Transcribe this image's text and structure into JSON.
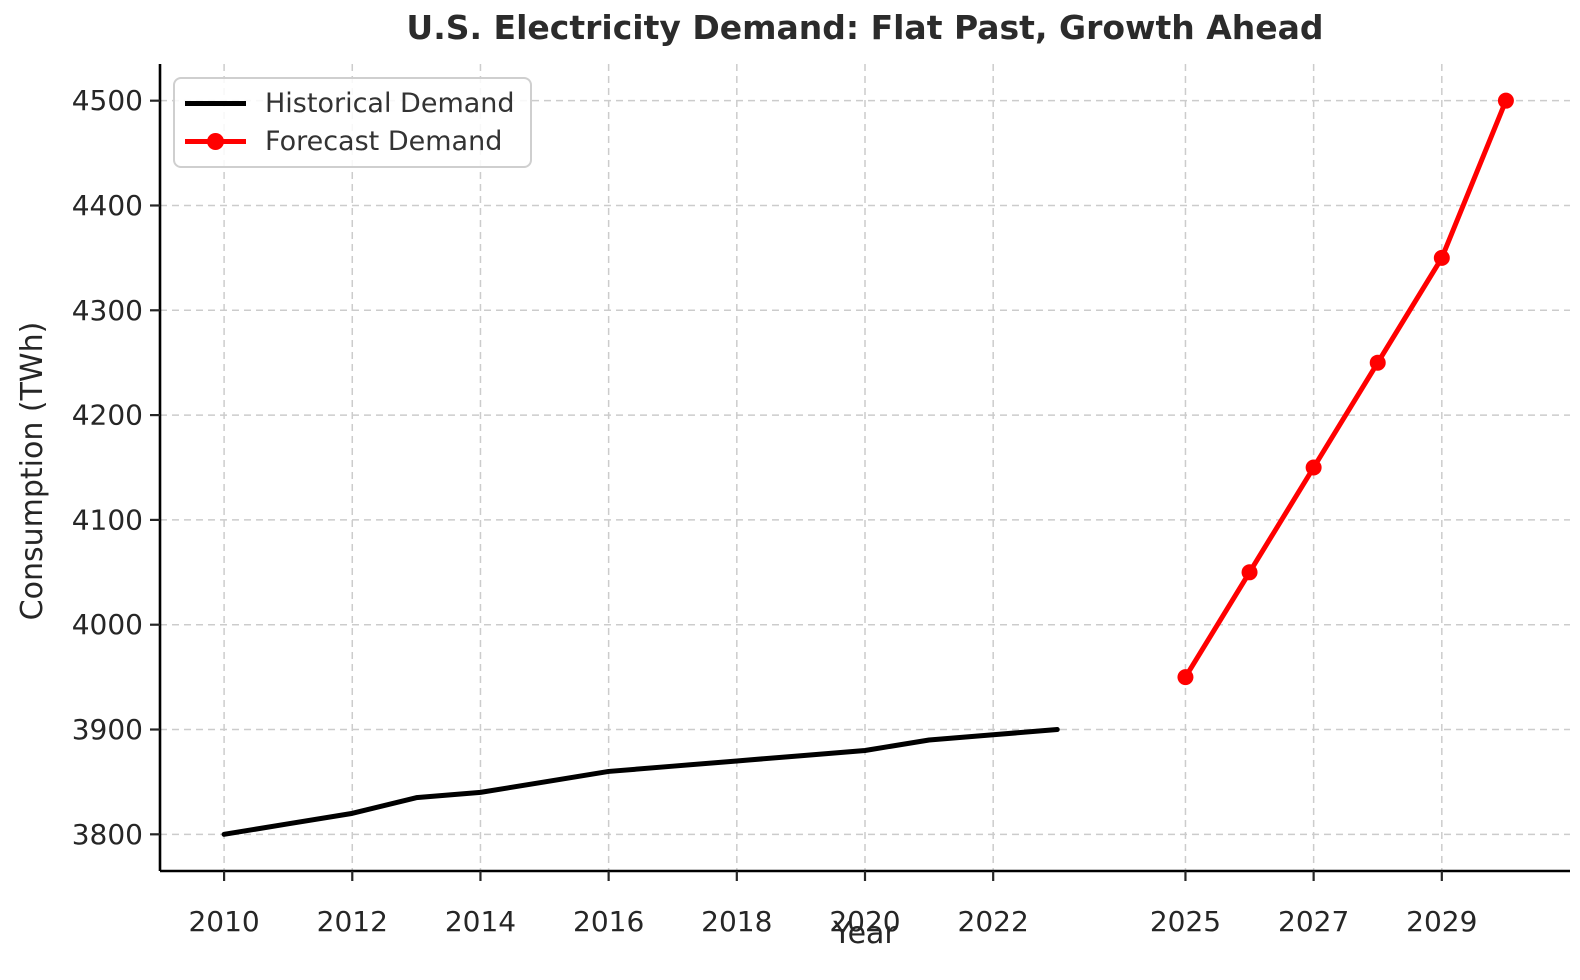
{
  "chart_data": {
    "type": "line",
    "title": "U.S. Electricity Demand: Flat Past, Growth Ahead",
    "xlabel": "Year",
    "ylabel": "Consumption (TWh)",
    "xlim": [
      2009,
      2031
    ],
    "ylim": [
      3765,
      4535
    ],
    "xticks": [
      2010,
      2012,
      2014,
      2016,
      2018,
      2020,
      2022,
      2025,
      2027,
      2029
    ],
    "yticks": [
      3800,
      3900,
      4000,
      4100,
      4200,
      4300,
      4400,
      4500
    ],
    "grid": true,
    "grid_style": "dashed",
    "legend_position": "upper left",
    "series": [
      {
        "name": "Historical Demand",
        "color": "#000000",
        "marker": "none",
        "x": [
          2010,
          2011,
          2012,
          2013,
          2014,
          2015,
          2016,
          2017,
          2018,
          2019,
          2020,
          2021,
          2022,
          2023
        ],
        "y": [
          3800,
          3810,
          3820,
          3835,
          3840,
          3850,
          3860,
          3865,
          3870,
          3875,
          3880,
          3890,
          3895,
          3900
        ]
      },
      {
        "name": "Forecast Demand",
        "color": "#ff0000",
        "marker": "circle",
        "x": [
          2025,
          2026,
          2027,
          2028,
          2029,
          2030
        ],
        "y": [
          3950,
          4050,
          4150,
          4250,
          4350,
          4500
        ]
      }
    ]
  },
  "colors": {
    "grid": "#cccccc",
    "spine": "#000000",
    "tick_label": "#262626",
    "title": "#2b2b2b",
    "legend_border": "#cfcfcf"
  }
}
